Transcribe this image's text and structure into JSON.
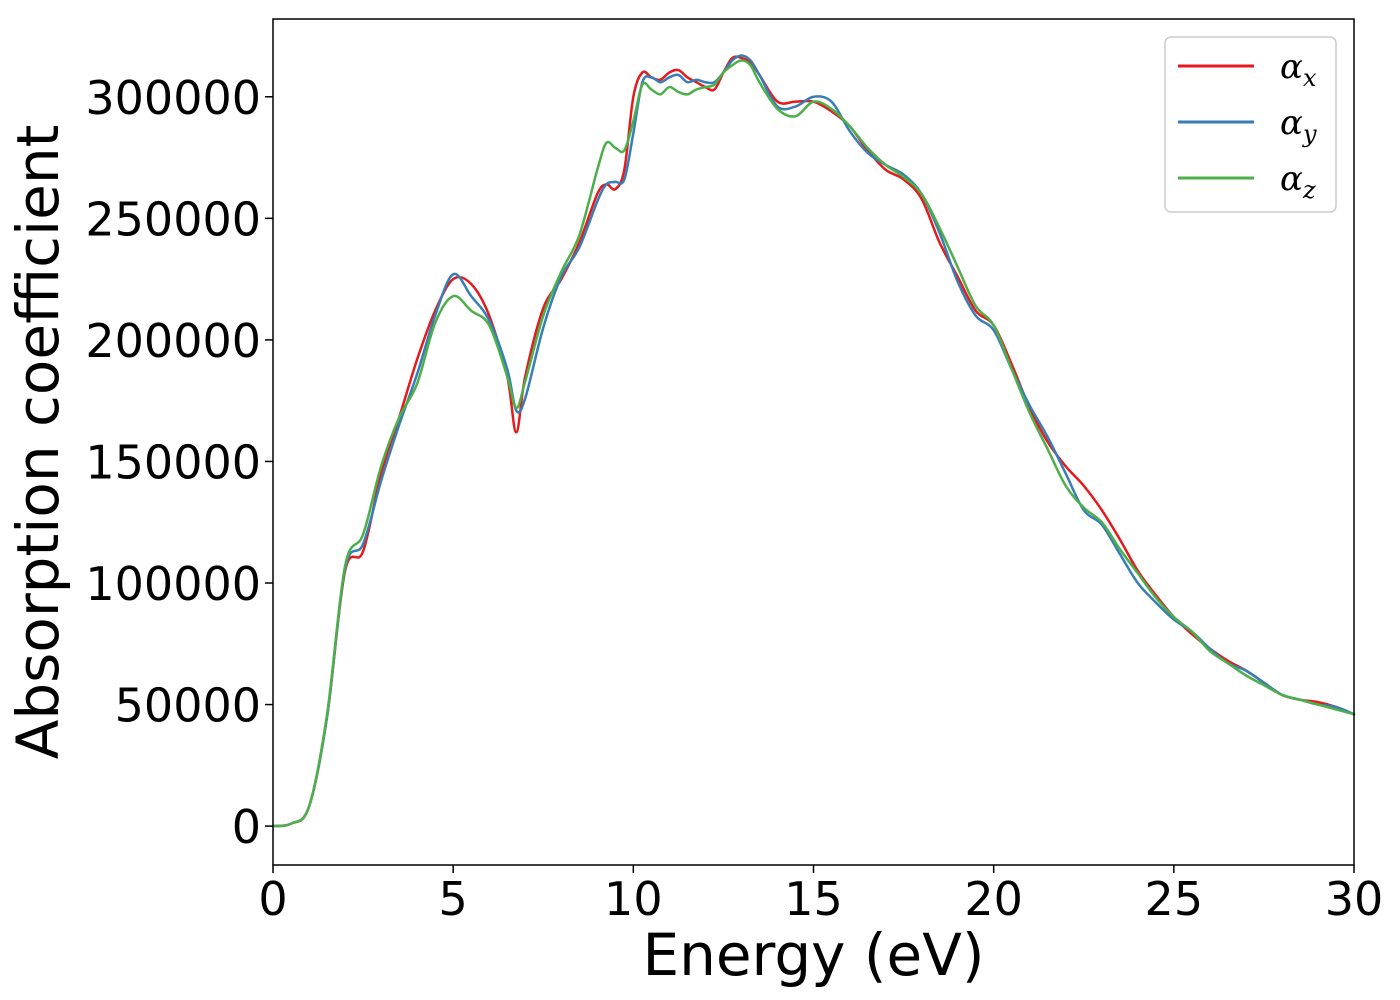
{
  "chart_data": {
    "type": "line",
    "title": "",
    "xlabel": "Energy (eV)",
    "ylabel": "Absorption coefficient",
    "xlim": [
      0,
      30
    ],
    "ylim": [
      -16000,
      332000
    ],
    "xticks": [
      0,
      5,
      10,
      15,
      20,
      25,
      30
    ],
    "yticks": [
      0,
      50000,
      100000,
      150000,
      200000,
      250000,
      300000
    ],
    "grid": false,
    "legend_position": "top-right",
    "x": [
      0,
      0.5,
      1,
      1.5,
      2,
      2.5,
      3,
      3.5,
      4,
      4.5,
      5,
      5.5,
      6,
      6.5,
      6.75,
      7,
      7.5,
      8,
      8.5,
      9,
      9.25,
      9.5,
      9.75,
      10,
      10.25,
      10.5,
      10.75,
      11,
      11.25,
      11.5,
      11.75,
      12,
      12.25,
      12.5,
      12.75,
      13,
      13.25,
      13.5,
      14,
      14.5,
      15,
      15.5,
      16,
      16.5,
      17,
      17.5,
      18,
      18.5,
      19,
      19.5,
      20,
      20.5,
      21,
      21.5,
      22,
      22.5,
      23,
      23.5,
      24,
      24.5,
      25,
      25.5,
      26,
      26.5,
      27,
      27.5,
      28,
      28.5,
      29,
      29.5,
      30
    ],
    "series": [
      {
        "name": "α_x",
        "label_main": "α",
        "label_sub": "x",
        "color": "#e41a1c",
        "values": [
          0,
          1000,
          8000,
          45000,
          105000,
          113000,
          145000,
          168000,
          192000,
          212000,
          225000,
          223000,
          210000,
          185000,
          162000,
          185000,
          213000,
          225000,
          240000,
          260000,
          264000,
          262000,
          270000,
          300000,
          310000,
          308000,
          307000,
          310000,
          311000,
          308000,
          306000,
          304000,
          303000,
          310000,
          316000,
          316000,
          314000,
          309000,
          298000,
          298000,
          298000,
          294000,
          288000,
          278000,
          270000,
          266000,
          258000,
          240000,
          226000,
          212000,
          206000,
          190000,
          172000,
          158000,
          148000,
          140000,
          130000,
          118000,
          105000,
          95000,
          86000,
          79000,
          73000,
          68000,
          64000,
          59000,
          54000,
          52000,
          51000,
          49000,
          46000
        ]
      },
      {
        "name": "α_y",
        "label_main": "α",
        "label_sub": "y",
        "color": "#377eb8",
        "values": [
          0,
          1000,
          8000,
          45000,
          106000,
          116000,
          142000,
          165000,
          186000,
          210000,
          227000,
          218000,
          208000,
          188000,
          171000,
          176000,
          205000,
          226000,
          238000,
          257000,
          264000,
          265000,
          266000,
          285000,
          306000,
          308000,
          306000,
          308000,
          309000,
          306000,
          307000,
          306000,
          306000,
          310000,
          315000,
          317000,
          315000,
          309000,
          296000,
          296000,
          300000,
          298000,
          286000,
          277000,
          272000,
          268000,
          260000,
          244000,
          224000,
          210000,
          204000,
          188000,
          173000,
          160000,
          145000,
          130000,
          124000,
          112000,
          100000,
          92000,
          85000,
          80000,
          73000,
          67000,
          64000,
          59000,
          54000,
          52000,
          50000,
          49000,
          46000
        ]
      },
      {
        "name": "α_z",
        "label_main": "α",
        "label_sub": "z",
        "color": "#4daf4a",
        "values": [
          0,
          1000,
          8000,
          46000,
          107000,
          120000,
          148000,
          168000,
          182000,
          207000,
          218000,
          212000,
          206000,
          185000,
          172000,
          183000,
          210000,
          228000,
          243000,
          270000,
          281000,
          279000,
          278000,
          290000,
          305000,
          303000,
          301000,
          304000,
          302000,
          301000,
          303000,
          304000,
          305000,
          310000,
          313000,
          315000,
          313000,
          306000,
          295000,
          292000,
          298000,
          295000,
          288000,
          279000,
          272000,
          267000,
          260000,
          246000,
          230000,
          214000,
          206000,
          188000,
          170000,
          155000,
          140000,
          131000,
          125000,
          114000,
          104000,
          94000,
          86000,
          80000,
          72000,
          67000,
          62000,
          58000,
          54000,
          52000,
          50000,
          48000,
          46000
        ]
      }
    ]
  }
}
